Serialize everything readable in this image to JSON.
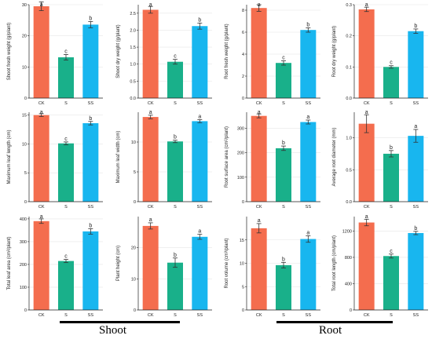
{
  "colors": {
    "CK": "#f46d4e",
    "S": "#19b08a",
    "SS": "#18b6ef",
    "axis": "#222222",
    "grid": "#e6e6e6",
    "error": "#333333"
  },
  "groups": {
    "shoot": "Shoot",
    "root": "Root"
  },
  "chart_data": [
    {
      "type": "bar",
      "categories": [
        "CK",
        "S",
        "SS"
      ],
      "values": [
        29.5,
        13.1,
        23.6
      ],
      "errors": [
        1.4,
        0.9,
        1.0
      ],
      "letters": [
        "a",
        "c",
        "b"
      ],
      "ylabel": "Shoot fresh weight (g/plant)",
      "ylim": [
        0,
        30
      ],
      "yticks": [
        0,
        10,
        20,
        30
      ],
      "ytick_labels": [
        "0",
        "10",
        "20",
        "30"
      ]
    },
    {
      "type": "bar",
      "categories": [
        "CK",
        "S",
        "SS"
      ],
      "values": [
        2.6,
        1.07,
        2.12
      ],
      "errors": [
        0.1,
        0.07,
        0.09
      ],
      "letters": [
        "a",
        "c",
        "b"
      ],
      "ylabel": "Shoot dry weight (g/plant)",
      "ylim": [
        0,
        2.75
      ],
      "yticks": [
        0,
        0.5,
        1,
        1.5,
        2,
        2.5
      ],
      "ytick_labels": [
        "0.0",
        "0.5",
        "1.0",
        "1.5",
        "2.0",
        "2.5"
      ]
    },
    {
      "type": "bar",
      "categories": [
        "CK",
        "S",
        "SS"
      ],
      "values": [
        8.2,
        3.2,
        6.2
      ],
      "errors": [
        0.3,
        0.2,
        0.2
      ],
      "letters": [
        "a",
        "c",
        "b"
      ],
      "ylabel": "Root fresh weight (g/plant)",
      "ylim": [
        0,
        8.5
      ],
      "yticks": [
        0,
        2,
        4,
        6,
        8
      ],
      "ytick_labels": [
        "0",
        "2",
        "4",
        "6",
        "8"
      ]
    },
    {
      "type": "bar",
      "categories": [
        "CK",
        "S",
        "SS"
      ],
      "values": [
        0.285,
        0.1,
        0.215
      ],
      "errors": [
        0.007,
        0.004,
        0.007
      ],
      "letters": [
        "a",
        "c",
        "b"
      ],
      "ylabel": "Root dry weight (g/plant)",
      "ylim": [
        0,
        0.3
      ],
      "yticks": [
        0,
        0.1,
        0.2,
        0.3
      ],
      "ytick_labels": [
        "0.0",
        "0.1",
        "0.2",
        "0.3"
      ]
    },
    {
      "type": "bar",
      "categories": [
        "CK",
        "S",
        "SS"
      ],
      "values": [
        15.0,
        10.1,
        13.6
      ],
      "errors": [
        0.25,
        0.25,
        0.3
      ],
      "letters": [
        "a",
        "c",
        "b"
      ],
      "ylabel": "Maximum leaf length (cm)",
      "ylim": [
        0,
        15.5
      ],
      "yticks": [
        0,
        5,
        10,
        15
      ],
      "ytick_labels": [
        "0",
        "5",
        "10",
        "15"
      ]
    },
    {
      "type": "bar",
      "categories": [
        "CK",
        "S",
        "SS"
      ],
      "values": [
        14.2,
        10.1,
        13.5
      ],
      "errors": [
        0.3,
        0.2,
        0.25
      ],
      "letters": [
        "a",
        "b",
        "a"
      ],
      "ylabel": "Maximum leaf width (cm)",
      "ylim": [
        0,
        15
      ],
      "yticks": [
        0,
        5,
        10
      ],
      "ytick_labels": [
        "0",
        "5",
        "10"
      ]
    },
    {
      "type": "bar",
      "categories": [
        "CK",
        "S",
        "SS"
      ],
      "values": [
        350,
        218,
        325
      ],
      "errors": [
        8,
        9,
        8
      ],
      "letters": [
        "a",
        "b",
        "a"
      ],
      "ylabel": "Root surface area (cm²/plant)",
      "ylim": [
        0,
        365
      ],
      "yticks": [
        0,
        100,
        200,
        300
      ],
      "ytick_labels": [
        "0",
        "100",
        "200",
        "300"
      ]
    },
    {
      "type": "bar",
      "categories": [
        "CK",
        "S",
        "SS"
      ],
      "values": [
        1.22,
        0.75,
        1.03
      ],
      "errors": [
        0.14,
        0.05,
        0.1
      ],
      "letters": [
        "a",
        "b",
        "a"
      ],
      "ylabel": "Average root diameter (mm)",
      "ylim": [
        0,
        1.4
      ],
      "yticks": [
        0,
        0.5,
        1
      ],
      "ytick_labels": [
        "0.0",
        "0.5",
        "1.0"
      ]
    },
    {
      "type": "bar",
      "categories": [
        "CK",
        "S",
        "SS"
      ],
      "values": [
        390,
        215,
        345
      ],
      "errors": [
        10,
        7,
        12
      ],
      "letters": [
        "a",
        "c",
        "b"
      ],
      "ylabel": "Total leaf area (cm²/plant)",
      "ylim": [
        0,
        410
      ],
      "yticks": [
        0,
        100,
        200,
        300,
        400
      ],
      "ytick_labels": [
        "0",
        "100",
        "200",
        "300",
        "400"
      ]
    },
    {
      "type": "bar",
      "categories": [
        "CK",
        "S",
        "SS"
      ],
      "values": [
        27.0,
        15.2,
        23.5
      ],
      "errors": [
        1.0,
        1.5,
        0.8
      ],
      "letters": [
        "a",
        "b",
        "a"
      ],
      "ylabel": "Plant height (cm)",
      "ylim": [
        0,
        30
      ],
      "yticks": [
        0,
        10,
        20
      ],
      "ytick_labels": [
        "0",
        "10",
        "20"
      ]
    },
    {
      "type": "bar",
      "categories": [
        "CK",
        "S",
        "SS"
      ],
      "values": [
        17.5,
        9.6,
        15.2
      ],
      "errors": [
        1.0,
        0.6,
        0.7
      ],
      "letters": [
        "a",
        "b",
        "a"
      ],
      "ylabel": "Root volume (cm³/plant)",
      "ylim": [
        0,
        20
      ],
      "yticks": [
        0,
        5,
        10,
        15
      ],
      "ytick_labels": [
        "0",
        "5",
        "10",
        "15"
      ]
    },
    {
      "type": "bar",
      "categories": [
        "CK",
        "S",
        "SS"
      ],
      "values": [
        1330,
        820,
        1170
      ],
      "errors": [
        50,
        30,
        25
      ],
      "letters": [
        "a",
        "c",
        "b"
      ],
      "ylabel": "Total root length (cm/plant)",
      "ylim": [
        0,
        1420
      ],
      "yticks": [
        0,
        400,
        800,
        1200
      ],
      "ytick_labels": [
        "0",
        "400",
        "800",
        "1200"
      ]
    }
  ]
}
